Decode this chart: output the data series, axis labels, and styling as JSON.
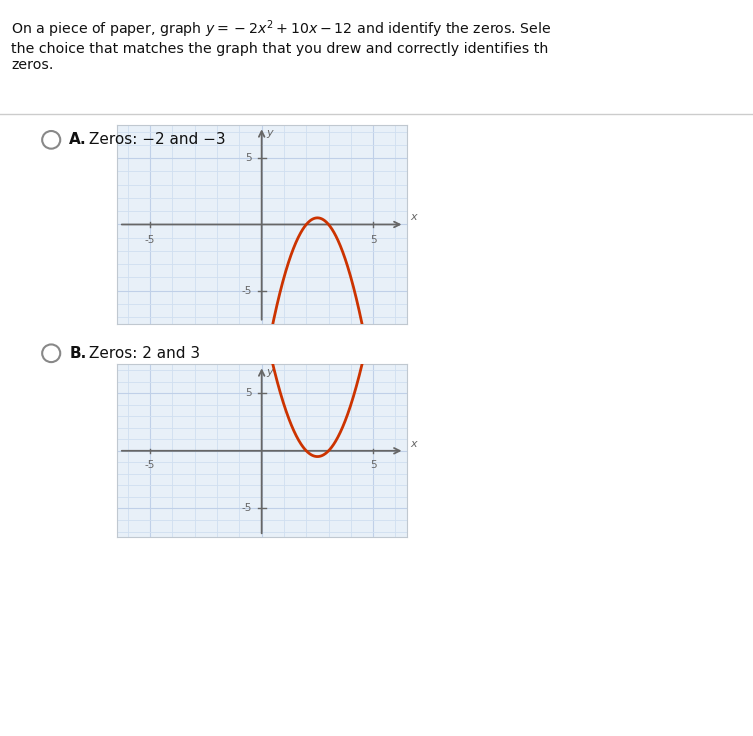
{
  "title_line1": "On a piece of paper, graph ",
  "title_math": "y = −2x² + 10x − 12",
  "title_line1_rest": " and identify the zeros. Sele",
  "title_line2": "the choice that matches the graph that you drew and correctly identifies th",
  "title_line3": "zeros.",
  "option_A_label": "A.",
  "option_A_zeros": "Zeros: −2 and −3",
  "option_B_label": "B.",
  "option_B_zeros": "Zeros: 2 and 3",
  "curve_color": "#cc3300",
  "grid_color_minor": "#d0dff0",
  "grid_color_major": "#c0d0e8",
  "axis_color": "#666666",
  "bg_color": "#ffffff",
  "plot_bg": "#e8f0f8",
  "plot_border": "#c0c8d0",
  "xlim": [
    -6.5,
    6.5
  ],
  "ylim": [
    -7.5,
    7.5
  ],
  "radio_color": "#888888",
  "tick_label_color": "#666666",
  "curve_A_zeros": [
    2,
    3
  ],
  "curve_A_coeff": -2,
  "curve_B_zeros": [
    2,
    3
  ],
  "curve_B_coeff": 2
}
